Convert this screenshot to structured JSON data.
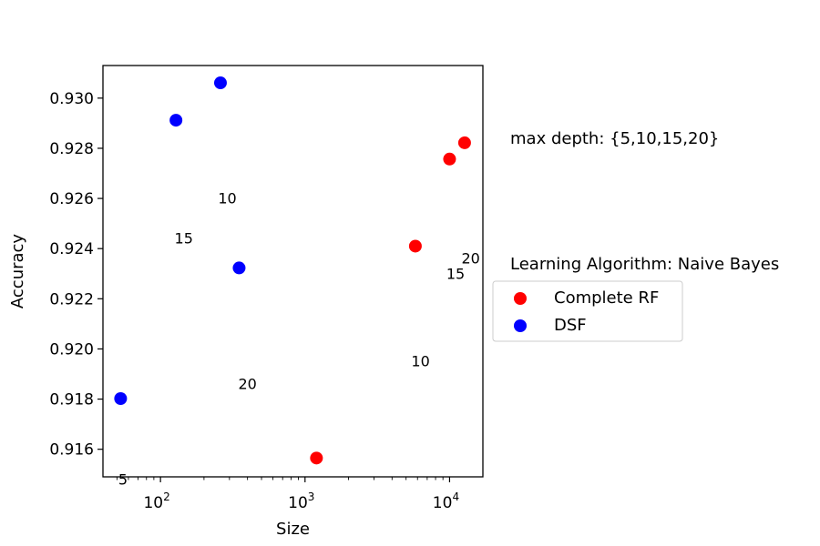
{
  "chart_data": {
    "type": "scatter",
    "xlabel": "Size",
    "ylabel": "Accuracy",
    "xscale": "log",
    "xlim": [
      40,
      17000
    ],
    "ylim": [
      0.9149,
      0.9313
    ],
    "x_ticks": [
      {
        "value": 100,
        "base": "10",
        "exp": "2"
      },
      {
        "value": 1000,
        "base": "10",
        "exp": "3"
      },
      {
        "value": 10000,
        "base": "10",
        "exp": "4"
      }
    ],
    "y_ticks": [
      {
        "value": 0.916,
        "label": "0.916"
      },
      {
        "value": 0.918,
        "label": "0.918"
      },
      {
        "value": 0.92,
        "label": "0.920"
      },
      {
        "value": 0.922,
        "label": "0.922"
      },
      {
        "value": 0.924,
        "label": "0.924"
      },
      {
        "value": 0.926,
        "label": "0.926"
      },
      {
        "value": 0.928,
        "label": "0.928"
      },
      {
        "value": 0.93,
        "label": "0.930"
      }
    ],
    "series": [
      {
        "name": "Complete RF",
        "color": "#ff0000",
        "points": [
          {
            "x": 1200,
            "y": 0.91565
          },
          {
            "x": 5800,
            "y": 0.9241
          },
          {
            "x": 10000,
            "y": 0.92757
          },
          {
            "x": 12700,
            "y": 0.92822
          }
        ]
      },
      {
        "name": "DSF",
        "color": "#0000ff",
        "points": [
          {
            "x": 53,
            "y": 0.91802
          },
          {
            "x": 350,
            "y": 0.92323
          },
          {
            "x": 128,
            "y": 0.92912
          },
          {
            "x": 260,
            "y": 0.93061
          }
        ]
      }
    ],
    "annotations": [
      {
        "text": "5",
        "x": 55,
        "y": 0.9146
      },
      {
        "text": "20",
        "x": 400,
        "y": 0.9184
      },
      {
        "text": "15",
        "x": 145,
        "y": 0.9242
      },
      {
        "text": "10",
        "x": 290,
        "y": 0.9258
      },
      {
        "text": "10",
        "x": 6300,
        "y": 0.9193
      },
      {
        "text": "15",
        "x": 11000,
        "y": 0.9228
      },
      {
        "text": "20",
        "x": 14000,
        "y": 0.9234
      }
    ],
    "legend": {
      "placement": "right",
      "entries": [
        "Complete RF",
        "DSF"
      ]
    },
    "side_texts": [
      "max depth: {5,10,15,20}",
      "Learning Algorithm: Naive Bayes"
    ],
    "grid": false
  }
}
